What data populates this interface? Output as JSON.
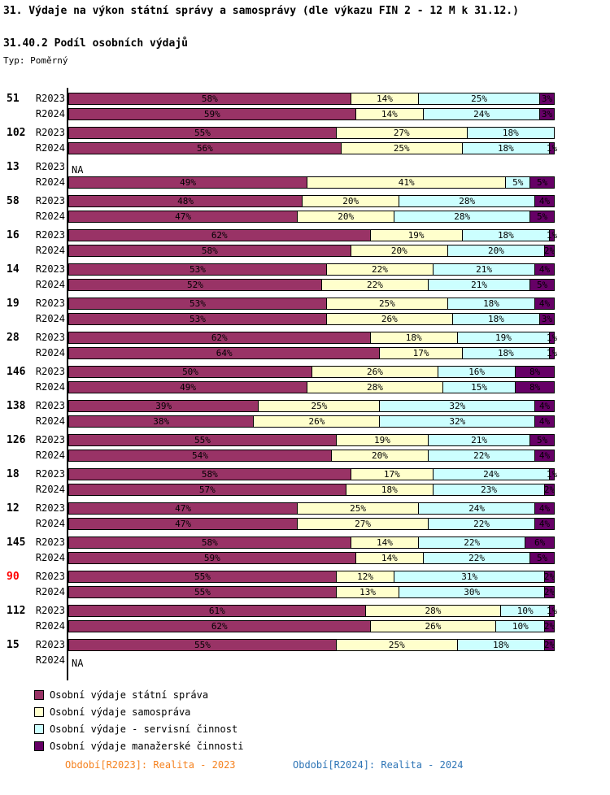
{
  "header": {
    "title": "31. Výdaje na výkon státní správy a samosprávy (dle výkazu FIN 2 - 12 M k 31.12.)",
    "subtitle": "31.40.2 Podíl osobních výdajů",
    "type_label": "Typ: Poměrný"
  },
  "chart_data": {
    "type": "bar",
    "stacked": true,
    "orientation": "horizontal",
    "unit": "%",
    "value_range": [
      0,
      100
    ],
    "grid": false,
    "legend_position": "bottom-left",
    "na_text": "NA",
    "highlight_color": "#FF0000",
    "series": [
      {
        "name": "Osobní výdaje státní správa",
        "color": "#993366"
      },
      {
        "name": "Osobní výdaje samospráva",
        "color": "#FFFFCC"
      },
      {
        "name": "Osobní výdaje - servisní činnost",
        "color": "#CCFFFF"
      },
      {
        "name": "Osobní výdaje manažerské činnosti",
        "color": "#660066"
      }
    ],
    "groups": [
      {
        "id": "51",
        "highlight": false,
        "rows": [
          {
            "label": "R2023",
            "values": [
              58,
              14,
              25,
              3
            ]
          },
          {
            "label": "R2024",
            "values": [
              59,
              14,
              24,
              3
            ]
          }
        ]
      },
      {
        "id": "102",
        "highlight": false,
        "rows": [
          {
            "label": "R2023",
            "values": [
              55,
              27,
              18,
              0
            ]
          },
          {
            "label": "R2024",
            "values": [
              56,
              25,
              18,
              1
            ]
          }
        ]
      },
      {
        "id": "13",
        "highlight": false,
        "rows": [
          {
            "label": "R2023",
            "values": null
          },
          {
            "label": "R2024",
            "values": [
              49,
              41,
              5,
              5
            ]
          }
        ]
      },
      {
        "id": "58",
        "highlight": false,
        "rows": [
          {
            "label": "R2023",
            "values": [
              48,
              20,
              28,
              4
            ]
          },
          {
            "label": "R2024",
            "values": [
              47,
              20,
              28,
              5
            ]
          }
        ]
      },
      {
        "id": "16",
        "highlight": false,
        "rows": [
          {
            "label": "R2023",
            "values": [
              62,
              19,
              18,
              1
            ]
          },
          {
            "label": "R2024",
            "values": [
              58,
              20,
              20,
              2
            ]
          }
        ]
      },
      {
        "id": "14",
        "highlight": false,
        "rows": [
          {
            "label": "R2023",
            "values": [
              53,
              22,
              21,
              4
            ]
          },
          {
            "label": "R2024",
            "values": [
              52,
              22,
              21,
              5
            ]
          }
        ]
      },
      {
        "id": "19",
        "highlight": false,
        "rows": [
          {
            "label": "R2023",
            "values": [
              53,
              25,
              18,
              4
            ]
          },
          {
            "label": "R2024",
            "values": [
              53,
              26,
              18,
              3
            ]
          }
        ]
      },
      {
        "id": "28",
        "highlight": false,
        "rows": [
          {
            "label": "R2023",
            "values": [
              62,
              18,
              19,
              1
            ]
          },
          {
            "label": "R2024",
            "values": [
              64,
              17,
              18,
              1
            ]
          }
        ]
      },
      {
        "id": "146",
        "highlight": false,
        "rows": [
          {
            "label": "R2023",
            "values": [
              50,
              26,
              16,
              8
            ]
          },
          {
            "label": "R2024",
            "values": [
              49,
              28,
              15,
              8
            ]
          }
        ]
      },
      {
        "id": "138",
        "highlight": false,
        "rows": [
          {
            "label": "R2023",
            "values": [
              39,
              25,
              32,
              4
            ]
          },
          {
            "label": "R2024",
            "values": [
              38,
              26,
              32,
              4
            ]
          }
        ]
      },
      {
        "id": "126",
        "highlight": false,
        "rows": [
          {
            "label": "R2023",
            "values": [
              55,
              19,
              21,
              5
            ]
          },
          {
            "label": "R2024",
            "values": [
              54,
              20,
              22,
              4
            ]
          }
        ]
      },
      {
        "id": "18",
        "highlight": false,
        "rows": [
          {
            "label": "R2023",
            "values": [
              58,
              17,
              24,
              1
            ]
          },
          {
            "label": "R2024",
            "values": [
              57,
              18,
              23,
              2
            ]
          }
        ]
      },
      {
        "id": "12",
        "highlight": false,
        "rows": [
          {
            "label": "R2023",
            "values": [
              47,
              25,
              24,
              4
            ]
          },
          {
            "label": "R2024",
            "values": [
              47,
              27,
              22,
              4
            ]
          }
        ]
      },
      {
        "id": "145",
        "highlight": false,
        "rows": [
          {
            "label": "R2023",
            "values": [
              58,
              14,
              22,
              6
            ]
          },
          {
            "label": "R2024",
            "values": [
              59,
              14,
              22,
              5
            ]
          }
        ]
      },
      {
        "id": "90",
        "highlight": true,
        "rows": [
          {
            "label": "R2023",
            "values": [
              55,
              12,
              31,
              2
            ]
          },
          {
            "label": "R2024",
            "values": [
              55,
              13,
              30,
              2
            ]
          }
        ]
      },
      {
        "id": "112",
        "highlight": false,
        "rows": [
          {
            "label": "R2023",
            "values": [
              61,
              28,
              10,
              1
            ]
          },
          {
            "label": "R2024",
            "values": [
              62,
              26,
              10,
              2
            ]
          }
        ]
      },
      {
        "id": "15",
        "highlight": false,
        "rows": [
          {
            "label": "R2023",
            "values": [
              55,
              25,
              18,
              2
            ]
          },
          {
            "label": "R2024",
            "values": null
          }
        ]
      }
    ]
  },
  "footer": {
    "left": {
      "text": "Období[R2023]: Realita - 2023",
      "color": "#F5821F"
    },
    "right": {
      "text": "Období[R2024]: Realita - 2024",
      "color": "#2E75B6"
    }
  }
}
